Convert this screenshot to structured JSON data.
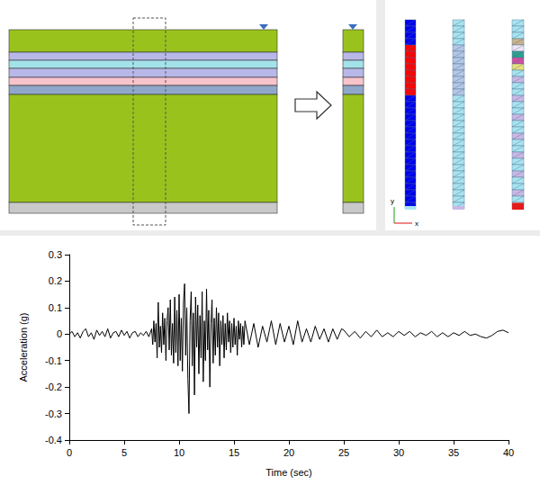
{
  "diagram": {
    "triad_labels": [
      "y",
      "x"
    ]
  },
  "chart_data": {
    "type": "line",
    "x_label": "Time (sec)",
    "y_label": "Acceleration (g)",
    "color": "#000000",
    "marker": "none",
    "line_style": "solid",
    "grid": false,
    "xlim": [
      0,
      40
    ],
    "xticks": [
      0,
      5,
      10,
      15,
      20,
      25,
      30,
      35,
      40
    ],
    "ylim": [
      -0.4,
      0.3
    ],
    "yticks": [
      -0.4,
      -0.3,
      -0.2,
      -0.1,
      0,
      0.1,
      0.2,
      0.3
    ],
    "x": [
      0,
      0.25,
      0.5,
      0.75,
      1,
      1.25,
      1.5,
      1.75,
      2,
      2.25,
      2.5,
      2.75,
      3,
      3.25,
      3.5,
      3.75,
      4,
      4.25,
      4.5,
      4.75,
      5,
      5.25,
      5.5,
      5.75,
      6,
      6.25,
      6.5,
      6.75,
      7,
      7.25,
      7.5,
      7.6,
      7.7,
      7.8,
      7.9,
      8,
      8.1,
      8.2,
      8.3,
      8.4,
      8.5,
      8.6,
      8.7,
      8.8,
      8.9,
      9,
      9.1,
      9.2,
      9.3,
      9.4,
      9.5,
      9.6,
      9.7,
      9.8,
      9.9,
      10,
      10.1,
      10.2,
      10.3,
      10.4,
      10.5,
      10.6,
      10.7,
      10.8,
      10.9,
      11,
      11.1,
      11.2,
      11.3,
      11.4,
      11.5,
      11.6,
      11.7,
      11.8,
      11.9,
      12,
      12.1,
      12.2,
      12.3,
      12.4,
      12.5,
      12.6,
      12.7,
      12.8,
      12.9,
      13,
      13.1,
      13.2,
      13.3,
      13.4,
      13.5,
      13.6,
      13.7,
      13.8,
      13.9,
      14,
      14.1,
      14.2,
      14.3,
      14.4,
      14.5,
      14.6,
      14.7,
      14.8,
      14.9,
      15,
      15.1,
      15.2,
      15.3,
      15.4,
      15.5,
      15.6,
      15.7,
      15.8,
      15.9,
      16,
      16.4,
      16.8,
      17.2,
      17.6,
      18,
      18.4,
      18.8,
      19.2,
      19.6,
      20,
      20.4,
      20.8,
      21.2,
      21.6,
      22,
      22.4,
      22.8,
      23.2,
      23.6,
      24,
      24.4,
      24.8,
      25,
      25.5,
      26,
      26.5,
      27,
      27.5,
      28,
      28.5,
      29,
      29.5,
      30,
      30.5,
      31,
      31.5,
      32,
      32.5,
      33,
      33.5,
      34,
      34.5,
      35,
      35.5,
      36,
      36.5,
      37,
      37.5,
      38,
      38.5,
      39,
      39.5,
      40
    ],
    "values": [
      0,
      0.01,
      -0.01,
      0.005,
      -0.015,
      0.01,
      0.02,
      -0.01,
      0.005,
      -0.02,
      0.015,
      -0.005,
      0.01,
      -0.01,
      0.02,
      -0.015,
      0.005,
      0.01,
      -0.01,
      0.015,
      -0.005,
      0.01,
      -0.015,
      0.005,
      0.01,
      -0.01,
      0.005,
      -0.005,
      0.01,
      -0.01,
      0.02,
      -0.04,
      0.05,
      -0.03,
      0.04,
      -0.09,
      0.12,
      -0.05,
      0.03,
      -0.07,
      0.08,
      -0.04,
      0.06,
      -0.1,
      0.05,
      0.1,
      -0.06,
      0.13,
      -0.08,
      0.04,
      -0.11,
      0.14,
      -0.07,
      0.09,
      -0.12,
      0.15,
      -0.1,
      0.06,
      -0.14,
      0.12,
      0.19,
      -0.08,
      0.1,
      -0.17,
      -0.3,
      0.05,
      0.16,
      -0.12,
      0.08,
      -0.23,
      0.14,
      -0.05,
      0.11,
      -0.15,
      0.07,
      -0.09,
      0.16,
      -0.18,
      0.05,
      -0.1,
      0.17,
      -0.06,
      0.09,
      -0.2,
      0.04,
      0.13,
      -0.11,
      0.06,
      -0.08,
      0.1,
      -0.05,
      0.08,
      -0.12,
      0.05,
      -0.04,
      0.07,
      -0.09,
      0.04,
      -0.06,
      0.08,
      -0.03,
      0.05,
      -0.07,
      0.04,
      -0.05,
      0.06,
      -0.04,
      0.03,
      -0.08,
      0.05,
      -0.02,
      0.04,
      -0.05,
      0.03,
      -0.04,
      0.05,
      -0.04,
      0.04,
      -0.05,
      0.03,
      -0.03,
      0.05,
      -0.04,
      0.04,
      -0.03,
      0.03,
      -0.04,
      0.05,
      -0.03,
      0.02,
      -0.03,
      0.03,
      -0.02,
      0.02,
      -0.03,
      0.02,
      -0.02,
      0.02,
      0.015,
      -0.01,
      0.01,
      -0.015,
      0.01,
      -0.01,
      0.015,
      -0.01,
      0.005,
      -0.01,
      0.01,
      -0.005,
      0.01,
      -0.01,
      0.005,
      -0.005,
      0.01,
      -0.01,
      0.005,
      -0.01,
      0.005,
      -0.005,
      0.01,
      -0.005,
      0,
      -0.01,
      -0.015,
      -0.005,
      0.01,
      0.015,
      0.005
    ]
  }
}
